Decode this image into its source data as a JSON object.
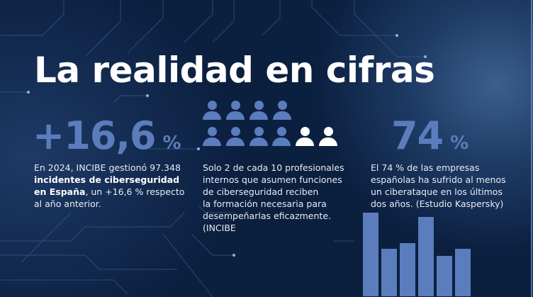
{
  "title": "La realidad en cifras",
  "stats": [
    {
      "value": "+16,6",
      "unit": "%",
      "text_pre": "En 2024, INCIBE gestionó 97.348",
      "text_bold_1": "incidentes de ciberseguridad",
      "text_bold_2": "en España",
      "text_post_2": ", un +16,6 % respecto",
      "text_line_4": "al año anterior."
    },
    {
      "people_total": 10,
      "people_highlighted": 2,
      "lines": [
        "Solo 2 de cada 10 profesionales",
        "internos que asumen funciones",
        "de ciberseguridad reciben",
        "la formación necesaria para",
        "desempeñarlas eficazmente.",
        "(INCIBE"
      ]
    },
    {
      "value": "74",
      "unit": "%",
      "lines": [
        "El 74 % de las empresas",
        "españolas ha sufrido al menos",
        "un ciberataque en los últimos",
        "dos años. (Estudio Kaspersky)"
      ]
    }
  ],
  "icons": [
    "person-icon",
    "bar-chart-icon",
    "circuit-lines"
  ],
  "colors": {
    "background": "#0b1f3f",
    "accent": "#5b7dbd",
    "text": "#ffffff"
  }
}
